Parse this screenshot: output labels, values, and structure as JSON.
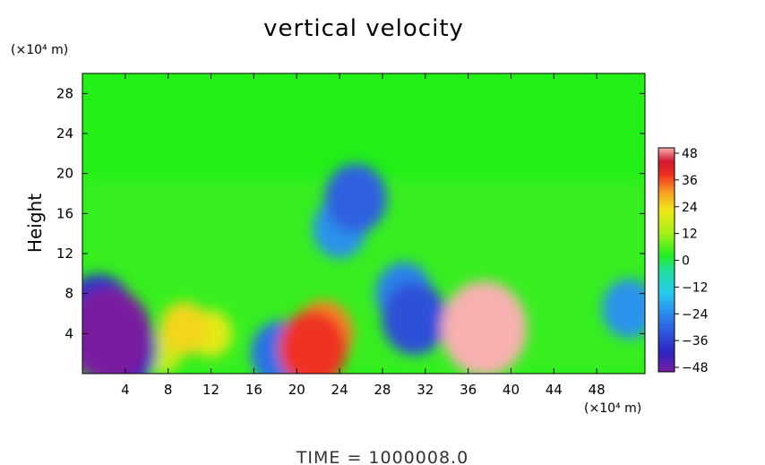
{
  "chart_data": {
    "type": "heatmap",
    "title": "vertical velocity",
    "ylabel": "Height",
    "xlabel": "",
    "x_unit": "(×10⁴ m)",
    "y_unit": "(×10⁴ m)",
    "xlim": [
      0,
      52.5
    ],
    "ylim": [
      0,
      30
    ],
    "x_ticks": [
      "4",
      "8",
      "12",
      "16",
      "20",
      "24",
      "28",
      "32",
      "36",
      "40",
      "44",
      "48"
    ],
    "y_ticks": [
      "4",
      "8",
      "12",
      "16",
      "20",
      "24",
      "28"
    ],
    "colorbar": {
      "ticks": [
        "48",
        "36",
        "24",
        "12",
        "0",
        "−12",
        "−24",
        "−36",
        "−48"
      ],
      "range": [
        -48,
        48
      ]
    },
    "features": [
      {
        "x": 2.5,
        "y": 3.8,
        "value": -48
      },
      {
        "x": 1.5,
        "y": 6.0,
        "value": -38
      },
      {
        "x": 3.5,
        "y": 2.5,
        "value": -40
      },
      {
        "x": 37.5,
        "y": 4.5,
        "value": 48
      },
      {
        "x": 37.0,
        "y": 5.5,
        "value": 34
      },
      {
        "x": 22.5,
        "y": 4.0,
        "value": 30
      },
      {
        "x": 21.5,
        "y": 2.5,
        "value": 36
      },
      {
        "x": 31.0,
        "y": 5.5,
        "value": -34
      },
      {
        "x": 30.0,
        "y": 8.0,
        "value": -28
      },
      {
        "x": 18.5,
        "y": 2.0,
        "value": -30
      },
      {
        "x": 51.0,
        "y": 6.5,
        "value": -26
      },
      {
        "x": 25.5,
        "y": 17.5,
        "value": -32
      },
      {
        "x": 24.0,
        "y": 14.5,
        "value": -26
      },
      {
        "x": 9.5,
        "y": 4.5,
        "value": 22
      },
      {
        "x": 12.0,
        "y": 4.0,
        "value": 18
      },
      {
        "x": 7.5,
        "y": 2.0,
        "value": 14
      }
    ],
    "annotation": "TIME  =  1000008.0"
  }
}
